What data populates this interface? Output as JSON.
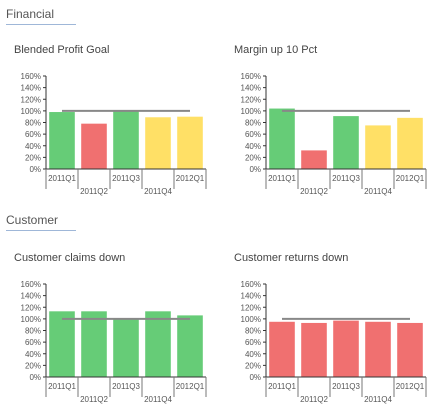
{
  "sections": [
    {
      "title": "Financial"
    },
    {
      "title": "Customer"
    }
  ],
  "colors": {
    "green": "#66cc77",
    "red": "#f07070",
    "yellow": "#ffe066",
    "target": "#888888",
    "axis": "#333333"
  },
  "chart_data": [
    {
      "type": "bar",
      "title": "Blended Profit Goal",
      "categories": [
        "2011Q1",
        "2011Q2",
        "2011Q3",
        "2011Q4",
        "2012Q1"
      ],
      "values": [
        98,
        78,
        100,
        89,
        90
      ],
      "bar_colors": [
        "green",
        "red",
        "green",
        "yellow",
        "yellow"
      ],
      "target": 100,
      "ylim": [
        0,
        160
      ],
      "yticks": [
        "0%",
        "20%",
        "40%",
        "60%",
        "80%",
        "100%",
        "120%",
        "140%",
        "160%"
      ]
    },
    {
      "type": "bar",
      "title": "Margin up 10 Pct",
      "categories": [
        "2011Q1",
        "2011Q2",
        "2011Q3",
        "2011Q4",
        "2012Q1"
      ],
      "values": [
        104,
        32,
        91,
        75,
        88
      ],
      "bar_colors": [
        "green",
        "red",
        "green",
        "yellow",
        "yellow"
      ],
      "target": 100,
      "ylim": [
        0,
        160
      ],
      "yticks": [
        "0%",
        "20%",
        "40%",
        "60%",
        "80%",
        "100%",
        "120%",
        "140%",
        "160%"
      ]
    },
    {
      "type": "bar",
      "title": "Customer claims down",
      "categories": [
        "2011Q1",
        "2011Q2",
        "2011Q3",
        "2011Q4",
        "2012Q1"
      ],
      "values": [
        113,
        113,
        100,
        113,
        106
      ],
      "bar_colors": [
        "green",
        "green",
        "green",
        "green",
        "green"
      ],
      "target": 100,
      "ylim": [
        0,
        160
      ],
      "yticks": [
        "0%",
        "20%",
        "40%",
        "60%",
        "80%",
        "100%",
        "120%",
        "140%",
        "160%"
      ]
    },
    {
      "type": "bar",
      "title": "Customer returns down",
      "categories": [
        "2011Q1",
        "2011Q2",
        "2011Q3",
        "2011Q4",
        "2012Q1"
      ],
      "values": [
        95,
        93,
        97,
        95,
        93
      ],
      "bar_colors": [
        "red",
        "red",
        "red",
        "red",
        "red"
      ],
      "target": 100,
      "ylim": [
        0,
        160
      ],
      "yticks": [
        "0%",
        "20%",
        "40%",
        "60%",
        "80%",
        "100%",
        "120%",
        "140%",
        "160%"
      ]
    }
  ]
}
